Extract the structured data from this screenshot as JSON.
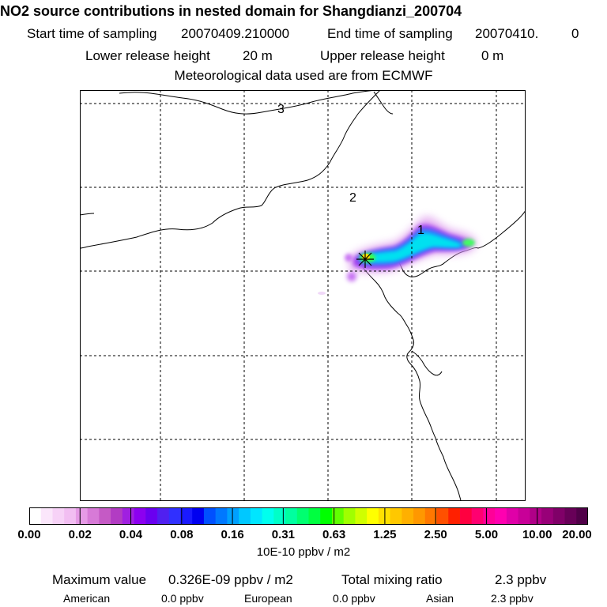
{
  "title": "NO2 source contributions in nested domain for Shangdianzi_200704",
  "start_label": "Start time of sampling",
  "start_value": "20070409.210000",
  "end_label": "End time of sampling",
  "end_value": "20070410.",
  "end_suffix": "0",
  "lower_label": "Lower release height",
  "lower_value": "20 m",
  "upper_label": "Upper release height",
  "upper_value": "0 m",
  "met_line": "Meteorological data used are from ECMWF",
  "map_labels": [
    "3",
    "2",
    "1"
  ],
  "colorbar": {
    "ticks": [
      "0.00",
      "0.02",
      "0.04",
      "0.08",
      "0.16",
      "0.31",
      "0.63",
      "1.25",
      "2.50",
      "5.00",
      "10.00",
      "20.00"
    ],
    "colors": [
      "#ffffff",
      "#fbe6fb",
      "#f7d2f7",
      "#f2bef2",
      "#e69ae6",
      "#d77ad7",
      "#c55ac5",
      "#b23cc3",
      "#a020e0",
      "#8c00f0",
      "#6a00f0",
      "#5020f0",
      "#3030ff",
      "#1a1aff",
      "#0000f0",
      "#0050ff",
      "#0078ff",
      "#00a0ff",
      "#00c8ff",
      "#00e6ff",
      "#00ffee",
      "#00ffc8",
      "#00ffa0",
      "#00ff70",
      "#00ff40",
      "#00ff00",
      "#60ff00",
      "#a0ff00",
      "#d0ff00",
      "#ffff00",
      "#ffe000",
      "#ffc800",
      "#ffb000",
      "#ff9800",
      "#ff7800",
      "#ff5000",
      "#ff2000",
      "#ff0040",
      "#ff0070",
      "#ff0098",
      "#ff00b0",
      "#e000a8",
      "#c80098",
      "#b00088",
      "#980078",
      "#800068",
      "#680058",
      "#500048"
    ],
    "unit": "10E-10 ppbv / m2"
  },
  "max_label": "Maximum value",
  "max_value": "0.326E-09 ppbv / m2",
  "total_label": "Total mixing ratio",
  "total_value": "2.3 ppbv",
  "regions": [
    {
      "name": "American",
      "value": "0.0 ppbv"
    },
    {
      "name": "European",
      "value": "0.0 ppbv"
    },
    {
      "name": "Asian",
      "value": "2.3 ppbv"
    }
  ]
}
